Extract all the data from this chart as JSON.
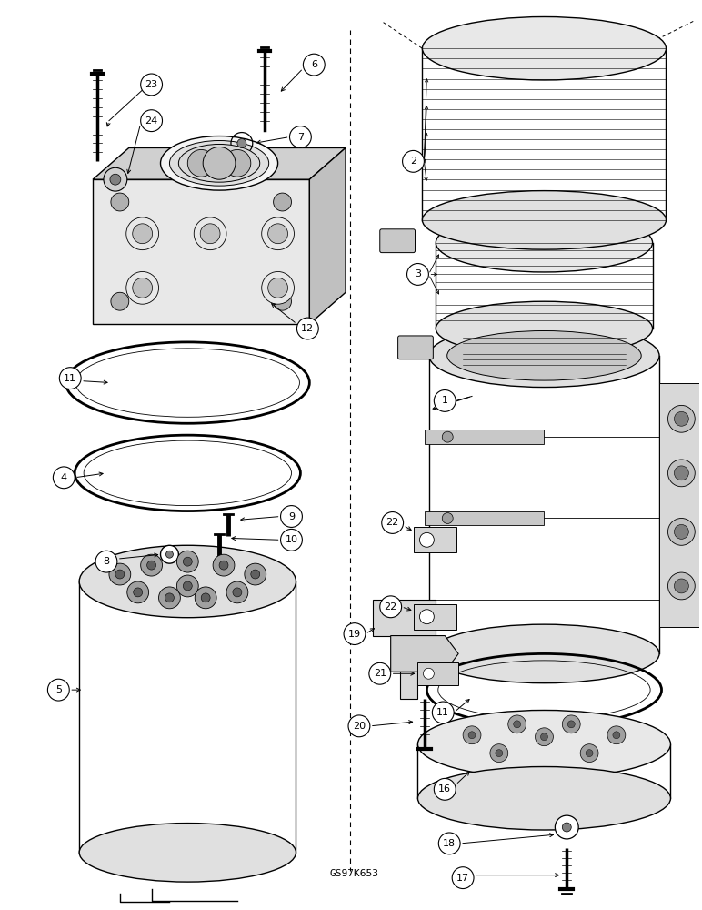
{
  "figure_id": "GS97K653",
  "bg_color": "#ffffff",
  "line_color": "#000000",
  "fig_width": 7.72,
  "fig_height": 10.0,
  "dpi": 100
}
